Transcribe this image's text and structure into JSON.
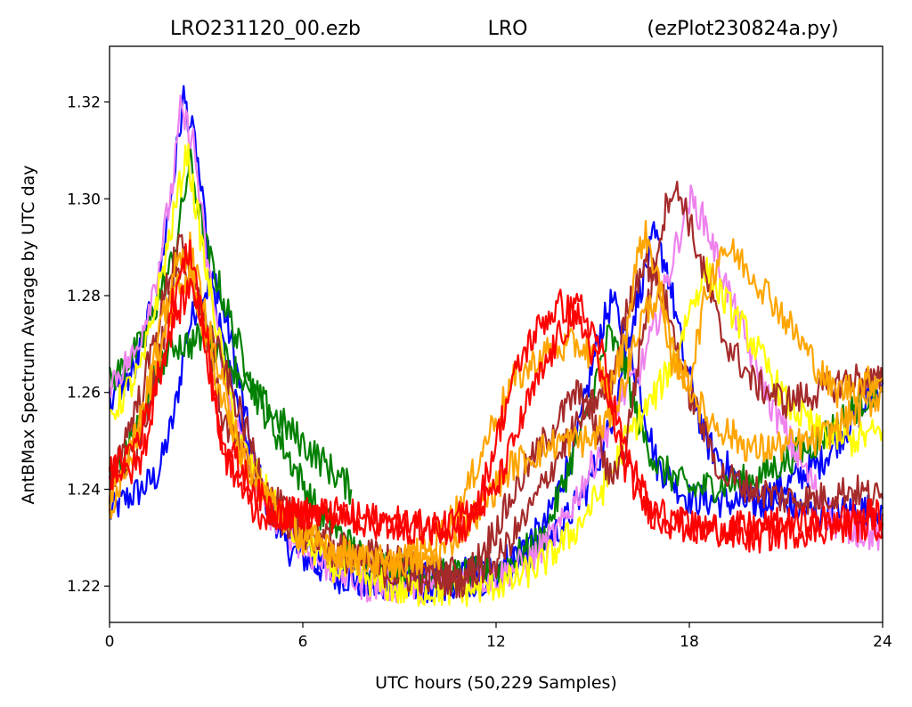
{
  "header": {
    "title_left": "LRO231120_00.ezb",
    "title_center": "LRO",
    "title_right": "(ezPlot230824a.py)"
  },
  "chart_data": {
    "type": "line",
    "title": "LRO231120_00.ezb   LRO   (ezPlot230824a.py)",
    "xlabel": "UTC hours  (50,229 Samples)",
    "ylabel": "AntBMax Spectrum Average by UTC day",
    "xlim": [
      0,
      24
    ],
    "ylim": [
      1.2125,
      1.3315
    ],
    "xticks": [
      0,
      6,
      12,
      18,
      24
    ],
    "xtick_labels": [
      "0",
      "6",
      "12",
      "18",
      "24"
    ],
    "yticks": [
      1.22,
      1.24,
      1.26,
      1.28,
      1.3,
      1.32
    ],
    "ytick_labels": [
      "1.22",
      "1.24",
      "1.26",
      "1.28",
      "1.30",
      "1.32"
    ],
    "grid": false,
    "legend": "none",
    "series": [
      {
        "color": "#0000ff",
        "x": [
          0,
          0.5,
          1,
          1.5,
          2,
          2.4,
          2.8,
          3.3,
          3.8,
          4.5,
          5.5,
          7,
          9,
          10.5,
          12,
          13.5,
          14.5,
          15.2,
          15.6,
          16.2,
          17,
          18,
          20,
          22,
          24
        ],
        "y": [
          1.235,
          1.238,
          1.24,
          1.243,
          1.255,
          1.272,
          1.28,
          1.283,
          1.27,
          1.245,
          1.228,
          1.222,
          1.221,
          1.222,
          1.224,
          1.232,
          1.25,
          1.272,
          1.279,
          1.268,
          1.245,
          1.238,
          1.237,
          1.245,
          1.262
        ]
      },
      {
        "color": "#0000ff",
        "x": [
          0,
          0.8,
          1.5,
          2,
          2.3,
          2.7,
          3.2,
          4,
          5,
          6.5,
          8,
          10,
          12,
          13,
          14,
          14.8,
          15.5,
          16,
          16.5,
          16.9,
          17.3,
          17.8,
          18.5,
          20,
          22,
          24
        ],
        "y": [
          1.258,
          1.265,
          1.282,
          1.305,
          1.321,
          1.31,
          1.28,
          1.255,
          1.235,
          1.225,
          1.221,
          1.22,
          1.222,
          1.226,
          1.232,
          1.24,
          1.252,
          1.268,
          1.282,
          1.292,
          1.286,
          1.268,
          1.25,
          1.238,
          1.235,
          1.236
        ]
      },
      {
        "color": "#008000",
        "x": [
          0,
          1,
          2,
          2.5,
          3,
          4.5,
          6.5,
          8,
          10,
          12,
          13.5,
          14.8,
          15.5,
          16,
          16.5,
          17,
          18,
          20,
          22,
          24
        ],
        "y": [
          1.262,
          1.27,
          1.288,
          1.308,
          1.29,
          1.26,
          1.235,
          1.225,
          1.222,
          1.223,
          1.23,
          1.255,
          1.272,
          1.265,
          1.252,
          1.245,
          1.24,
          1.242,
          1.25,
          1.262
        ]
      },
      {
        "color": "#008000",
        "x": [
          0,
          1,
          1.5,
          2,
          2.5,
          3,
          5,
          7.5
        ],
        "y": [
          1.24,
          1.255,
          1.265,
          1.27,
          1.27,
          1.272,
          1.256,
          1.24
        ]
      },
      {
        "color": "#ee82ee",
        "x": [
          0,
          0.8,
          1.5,
          2,
          2.2,
          2.6,
          3,
          3.8,
          5,
          6.5,
          8,
          10,
          12,
          13,
          14,
          15,
          15.8,
          16.5,
          17,
          17.5,
          18,
          18.5,
          19.5,
          20.5,
          21.5,
          22.5,
          24
        ],
        "y": [
          1.262,
          1.268,
          1.285,
          1.305,
          1.318,
          1.312,
          1.288,
          1.255,
          1.235,
          1.225,
          1.22,
          1.22,
          1.222,
          1.225,
          1.232,
          1.245,
          1.258,
          1.265,
          1.275,
          1.288,
          1.3,
          1.295,
          1.275,
          1.258,
          1.245,
          1.233,
          1.23
        ]
      },
      {
        "color": "#ffff00",
        "x": [
          0,
          1,
          1.8,
          2.4,
          3,
          4,
          5.5,
          7,
          9,
          11,
          12.5,
          13.5,
          14.5,
          15.5,
          16,
          16.5,
          17,
          17.6,
          18,
          18.5,
          19,
          20,
          21,
          22,
          23,
          24
        ],
        "y": [
          1.255,
          1.265,
          1.29,
          1.31,
          1.285,
          1.25,
          1.232,
          1.224,
          1.219,
          1.219,
          1.221,
          1.225,
          1.232,
          1.242,
          1.25,
          1.255,
          1.26,
          1.268,
          1.277,
          1.285,
          1.28,
          1.27,
          1.258,
          1.252,
          1.25,
          1.252
        ]
      },
      {
        "color": "#a52a2a",
        "x": [
          0,
          0.8,
          1.5,
          2.2,
          2.8,
          3.5,
          5,
          7,
          9,
          11,
          12,
          13,
          14,
          14.5,
          15,
          15.5,
          16,
          16.5,
          17,
          17.4,
          17.8,
          18.3,
          19,
          20,
          21,
          22,
          23,
          24
        ],
        "y": [
          1.24,
          1.248,
          1.265,
          1.293,
          1.28,
          1.255,
          1.235,
          1.227,
          1.222,
          1.221,
          1.232,
          1.245,
          1.255,
          1.26,
          1.255,
          1.242,
          1.248,
          1.27,
          1.29,
          1.302,
          1.3,
          1.288,
          1.272,
          1.262,
          1.258,
          1.26,
          1.263,
          1.262
        ]
      },
      {
        "color": "#a52a2a",
        "x": [
          0,
          1,
          2,
          3,
          5,
          7,
          9,
          11,
          12,
          13,
          14,
          15,
          15.5,
          16,
          16.6,
          17.2,
          18,
          19,
          20,
          21,
          22,
          23,
          24
        ],
        "y": [
          1.242,
          1.26,
          1.288,
          1.275,
          1.238,
          1.228,
          1.225,
          1.222,
          1.225,
          1.235,
          1.248,
          1.258,
          1.26,
          1.275,
          1.288,
          1.28,
          1.26,
          1.243,
          1.24,
          1.238,
          1.238,
          1.24,
          1.238
        ]
      },
      {
        "color": "#ffa500",
        "x": [
          0,
          0.8,
          1.5,
          2,
          2.5,
          3,
          4,
          5.5,
          7,
          8.5,
          10,
          11,
          11.8,
          12.5,
          13.5,
          14.5,
          15,
          15.5,
          16,
          16.3,
          16.6,
          17,
          17.5,
          18,
          18.5,
          19,
          19.5,
          20.5,
          21.5,
          22.5,
          24
        ],
        "y": [
          1.236,
          1.25,
          1.27,
          1.285,
          1.29,
          1.275,
          1.248,
          1.233,
          1.227,
          1.224,
          1.228,
          1.238,
          1.252,
          1.262,
          1.268,
          1.27,
          1.268,
          1.26,
          1.27,
          1.285,
          1.293,
          1.285,
          1.265,
          1.262,
          1.28,
          1.29,
          1.288,
          1.28,
          1.27,
          1.26,
          1.263
        ]
      },
      {
        "color": "#ffa500",
        "x": [
          0,
          1,
          2,
          2.5,
          3.2,
          4.5,
          6,
          8,
          10,
          11.5,
          12.5,
          14,
          15,
          15.8,
          16.5,
          17,
          17.5,
          18.5,
          20,
          22,
          24
        ],
        "y": [
          1.238,
          1.255,
          1.28,
          1.285,
          1.265,
          1.24,
          1.23,
          1.225,
          1.225,
          1.236,
          1.245,
          1.25,
          1.25,
          1.258,
          1.275,
          1.28,
          1.268,
          1.255,
          1.248,
          1.25,
          1.26
        ]
      },
      {
        "color": "#ff0000",
        "x": [
          0,
          0.5,
          1,
          1.5,
          2,
          2.5,
          3,
          3.5,
          4.5,
          6,
          7.5,
          9,
          10.5,
          11.5,
          12,
          12.5,
          13,
          13.5,
          14,
          14.5,
          15,
          15.5,
          16,
          16.5,
          17,
          17.5,
          18,
          19,
          20,
          21,
          22,
          23,
          24
        ],
        "y": [
          1.245,
          1.243,
          1.246,
          1.262,
          1.28,
          1.29,
          1.272,
          1.248,
          1.235,
          1.235,
          1.234,
          1.232,
          1.232,
          1.238,
          1.25,
          1.262,
          1.27,
          1.275,
          1.278,
          1.276,
          1.268,
          1.258,
          1.245,
          1.238,
          1.234,
          1.233,
          1.232,
          1.232,
          1.232,
          1.233,
          1.233,
          1.234,
          1.235
        ]
      },
      {
        "color": "#ff0000",
        "x": [
          0,
          1,
          2,
          2.6,
          3.5,
          5,
          7,
          9,
          11,
          12,
          13,
          14,
          14.6,
          15.2,
          16,
          16.8,
          18,
          20,
          22,
          24
        ],
        "y": [
          1.242,
          1.252,
          1.275,
          1.283,
          1.25,
          1.235,
          1.235,
          1.233,
          1.232,
          1.24,
          1.258,
          1.272,
          1.278,
          1.27,
          1.248,
          1.236,
          1.232,
          1.23,
          1.232,
          1.233
        ]
      }
    ]
  }
}
